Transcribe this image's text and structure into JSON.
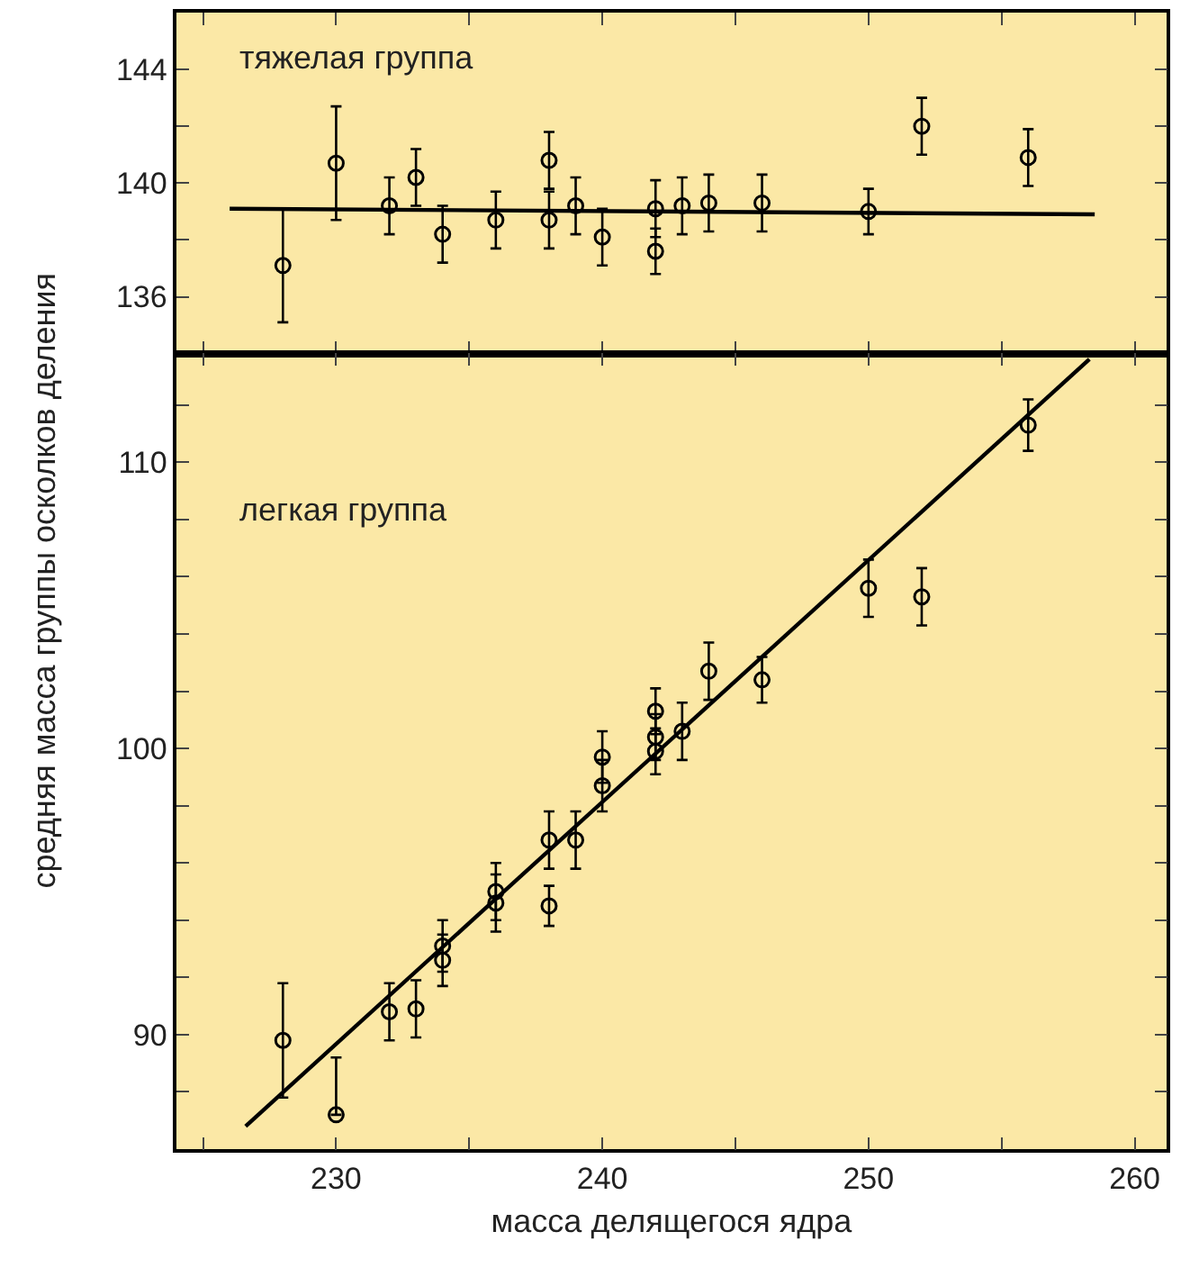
{
  "chart_data": [
    {
      "type": "scatter",
      "ylabel": "средняя масса группы осколков деления",
      "annotations": [
        "тяжелая группа"
      ],
      "xlim": [
        224,
        261.2
      ],
      "ylim": [
        134,
        146
      ],
      "xticks": [
        {
          "value": 225,
          "label": null
        },
        {
          "value": 230,
          "label": null
        },
        {
          "value": 235,
          "label": null
        },
        {
          "value": 240,
          "label": null
        },
        {
          "value": 245,
          "label": null
        },
        {
          "value": 250,
          "label": null
        },
        {
          "value": 255,
          "label": null
        },
        {
          "value": 260,
          "label": null
        }
      ],
      "yticks": [
        136,
        {
          "value": 138,
          "label": null
        },
        140,
        {
          "value": 142,
          "label": null
        },
        144
      ],
      "tick_labels": "y",
      "grid": false,
      "series": [
        {
          "marker": "circle",
          "color": "#000000",
          "x": [
            228,
            230,
            232,
            233,
            234,
            236,
            238,
            238,
            239,
            240,
            242,
            242,
            243,
            244,
            246,
            250,
            252,
            256
          ],
          "values": [
            137.1,
            140.7,
            139.2,
            140.2,
            138.2,
            138.7,
            140.8,
            138.7,
            139.2,
            138.1,
            139.1,
            137.6,
            139.2,
            139.3,
            139.3,
            139.0,
            142.0,
            140.9
          ],
          "errors": [
            2,
            2,
            1,
            1,
            1,
            1,
            1,
            1,
            1,
            1,
            1,
            0.8,
            1,
            1,
            1,
            0.8,
            1,
            1
          ]
        },
        {
          "type": "line",
          "marker": "none",
          "color": "#000000",
          "x": [
            226,
            258.5
          ],
          "values": [
            139.1,
            138.9
          ]
        }
      ]
    },
    {
      "type": "scatter",
      "xlabel": "масса делящегося ядра",
      "annotations": [
        "легкая группа"
      ],
      "xlim": [
        224,
        261.2
      ],
      "ylim": [
        86,
        113.8
      ],
      "xticks": [
        {
          "value": 225,
          "label": null
        },
        230,
        {
          "value": 235,
          "label": null
        },
        240,
        {
          "value": 245,
          "label": null
        },
        250,
        {
          "value": 255,
          "label": null
        },
        260
      ],
      "yticks": [
        {
          "value": 88,
          "label": null
        },
        90,
        {
          "value": 92,
          "label": null
        },
        {
          "value": 94,
          "label": null
        },
        {
          "value": 96,
          "label": null
        },
        {
          "value": 98,
          "label": null
        },
        100,
        {
          "value": 102,
          "label": null
        },
        {
          "value": 104,
          "label": null
        },
        {
          "value": 106,
          "label": null
        },
        {
          "value": 108,
          "label": null
        },
        110,
        {
          "value": 112,
          "label": null
        }
      ],
      "grid": false,
      "series": [
        {
          "marker": "circle",
          "color": "#000000",
          "x": [
            228,
            230,
            232,
            233,
            234,
            234,
            236,
            236,
            238,
            238,
            239,
            240,
            240,
            242,
            242,
            242,
            243,
            244,
            246,
            250,
            252,
            256
          ],
          "values": [
            89.8,
            87.2,
            90.8,
            90.9,
            93.1,
            92.6,
            95.0,
            94.6,
            96.8,
            94.5,
            96.8,
            99.7,
            98.7,
            101.3,
            100.4,
            99.9,
            100.6,
            102.7,
            102.4,
            105.6,
            105.3,
            111.3
          ],
          "errors": [
            2,
            [
              87.2,
              89.2
            ],
            1,
            1,
            0.9,
            0.9,
            1,
            1,
            1,
            0.7,
            1,
            0.9,
            0.9,
            0.8,
            0.8,
            0.8,
            1,
            1,
            0.8,
            1,
            1,
            0.9
          ]
        },
        {
          "type": "line",
          "marker": "none",
          "color": "#000000",
          "x": [
            226.6,
            258.3
          ],
          "values": [
            86.8,
            113.6
          ]
        }
      ]
    }
  ]
}
